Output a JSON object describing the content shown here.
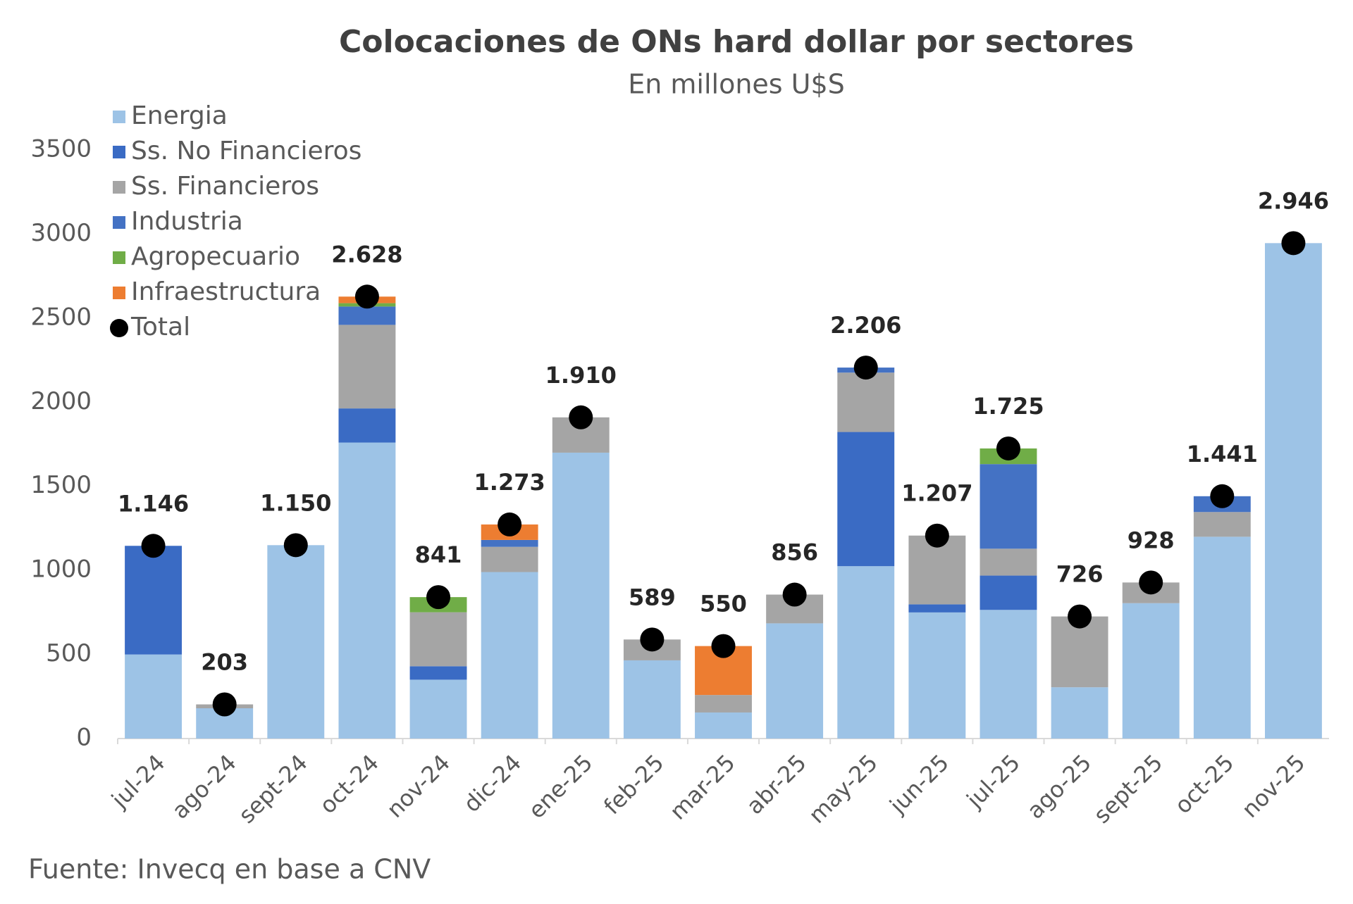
{
  "chart_data": {
    "type": "stacked-bar",
    "title": "Colocaciones de ONs hard dollar por sectores",
    "subtitle": "En millones U$S",
    "source": "Fuente: Invecq en base a CNV",
    "categories": [
      "jul-24",
      "ago-24",
      "sept-24",
      "oct-24",
      "nov-24",
      "dic-24",
      "ene-25",
      "feb-25",
      "mar-25",
      "abr-25",
      "may-25",
      "jun-25",
      "jul-25",
      "ago-25",
      "sept-25",
      "oct-25",
      "nov-25"
    ],
    "series": [
      {
        "name": "Energia",
        "color": "#9dc3e6",
        "values": [
          500,
          180,
          1150,
          1760,
          350,
          990,
          1700,
          465,
          155,
          685,
          1025,
          750,
          765,
          305,
          805,
          1200,
          2946
        ]
      },
      {
        "name": "Ss. No Financieros",
        "color": "#3a6bc4",
        "values": [
          646,
          0,
          0,
          203,
          80,
          0,
          0,
          0,
          0,
          0,
          798,
          48,
          204,
          0,
          0,
          0,
          0
        ]
      },
      {
        "name": "Ss. Financieros",
        "color": "#a5a5a5",
        "values": [
          0,
          23,
          0,
          497,
          321,
          150,
          210,
          124,
          104,
          171,
          353,
          409,
          160,
          421,
          123,
          147,
          0
        ]
      },
      {
        "name": "Industria",
        "color": "#4472c4",
        "values": [
          0,
          0,
          0,
          109,
          0,
          41,
          0,
          0,
          0,
          0,
          30,
          0,
          503,
          0,
          0,
          94,
          0
        ]
      },
      {
        "name": "Agropecuario",
        "color": "#70ad47",
        "values": [
          0,
          0,
          0,
          20,
          90,
          0,
          0,
          0,
          0,
          0,
          0,
          0,
          93,
          0,
          0,
          0,
          0
        ]
      },
      {
        "name": "Infraestructura",
        "color": "#ed7d31",
        "values": [
          0,
          0,
          0,
          39,
          0,
          92,
          0,
          0,
          291,
          0,
          0,
          0,
          0,
          0,
          0,
          0,
          0
        ]
      }
    ],
    "total": {
      "name": "Total",
      "color": "#000000",
      "values": [
        1146,
        203,
        1150,
        2628,
        841,
        1273,
        1910,
        589,
        550,
        856,
        2206,
        1207,
        1725,
        726,
        928,
        1441,
        2946
      ],
      "value_labels": [
        "1.146",
        "203",
        "1.150",
        "2.628",
        "841",
        "1.273",
        "1.910",
        "589",
        "550",
        "856",
        "2.206",
        "1.207",
        "1.725",
        "726",
        "928",
        "1.441",
        "2.946"
      ]
    },
    "ylim": [
      0,
      3500
    ],
    "yticks": [
      0,
      500,
      1000,
      1500,
      2000,
      2500,
      3000,
      3500
    ],
    "grid": false,
    "legend": "top-left"
  }
}
